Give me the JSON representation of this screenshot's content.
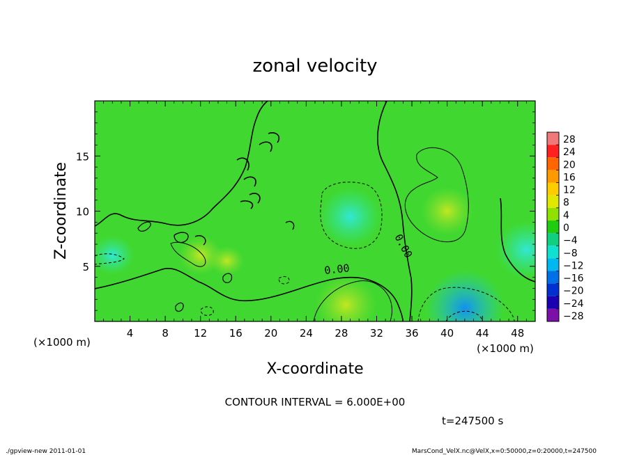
{
  "chart_data": {
    "type": "heatmap",
    "title": "zonal velocity",
    "xlabel": "X-coordinate",
    "ylabel": "Z-coordinate",
    "x_unit": "(×1000 m)",
    "y_unit": "(×1000 m)",
    "xlim": [
      0,
      50
    ],
    "ylim": [
      0,
      20
    ],
    "x_ticks": [
      4,
      8,
      12,
      16,
      20,
      24,
      28,
      32,
      36,
      40,
      44,
      48
    ],
    "y_ticks": [
      5,
      10,
      15
    ],
    "colorbar": {
      "levels": [
        28,
        24,
        20,
        16,
        12,
        8,
        4,
        0,
        -4,
        -8,
        -12,
        -16,
        -20,
        -24,
        -28
      ],
      "labels": [
        "28",
        "24",
        "20",
        "16",
        "12",
        "8",
        "4",
        "0",
        "−4",
        "−8",
        "−12",
        "−16",
        "−20",
        "−24",
        "−28"
      ],
      "colors": [
        "#f07878",
        "#ff2020",
        "#ff6600",
        "#ff9900",
        "#ffcc00",
        "#e0e800",
        "#90e000",
        "#20cc10",
        "#10d080",
        "#10e0d0",
        "#00b8f0",
        "#0070e8",
        "#0030d0",
        "#1a00b0",
        "#7a10a8"
      ]
    },
    "contour_labels": [
      "0.00",
      "0.00"
    ],
    "contour_interval_text": "CONTOUR INTERVAL = 6.000E+00",
    "time_text": "t=247500 s",
    "field_features": [
      {
        "x": 29,
        "z": 9.5,
        "value": -8
      },
      {
        "x": 40,
        "z": 10.0,
        "value": 6
      },
      {
        "x": 28.5,
        "z": 1.5,
        "value": 8
      },
      {
        "x": 42,
        "z": 1.2,
        "value": -12
      },
      {
        "x": 49,
        "z": 6.5,
        "value": -8
      },
      {
        "x": 12,
        "z": 6.0,
        "value": 4
      },
      {
        "x": 2,
        "z": 6.0,
        "value": -4
      },
      {
        "x": 15,
        "z": 5.5,
        "value": 2
      }
    ]
  },
  "footer": {
    "left": "./gpview-new   2011-01-01",
    "right": "MarsCond_VelX.nc@VelX,x=0:50000,z=0:20000,t=247500"
  }
}
